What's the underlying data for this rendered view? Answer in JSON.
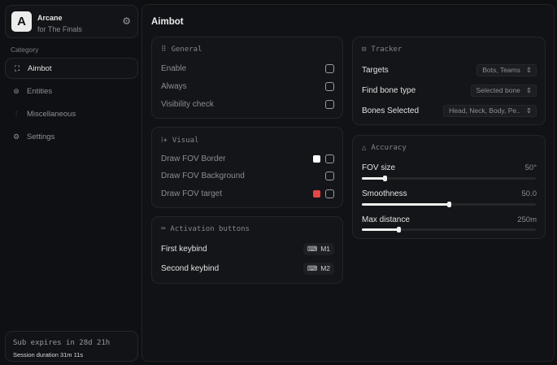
{
  "brand": {
    "logo": "A",
    "name": "Arcane",
    "subtitle": "for The Finals"
  },
  "sidebar": {
    "category_label": "Category",
    "items": [
      {
        "label": "Aimbot",
        "icon": "crosshair-icon",
        "active": true
      },
      {
        "label": "Entities",
        "icon": "entities-icon",
        "active": false
      },
      {
        "label": "Miscellaneous",
        "icon": "sliders-icon",
        "active": false
      },
      {
        "label": "Settings",
        "icon": "gear-icon",
        "active": false
      }
    ]
  },
  "subscription": {
    "expires": "Sub expires in 28d 21h",
    "session": "Session duration 31m 11s"
  },
  "main": {
    "title": "Aimbot"
  },
  "general": {
    "title": "General",
    "items": [
      {
        "label": "Enable",
        "checked": false
      },
      {
        "label": "Always",
        "checked": false
      },
      {
        "label": "Visibility check",
        "checked": false
      }
    ]
  },
  "visual": {
    "title": "Visual",
    "items": [
      {
        "label": "Draw FOV Border",
        "color": "#ffffff",
        "checked": false
      },
      {
        "label": "Draw FOV Background",
        "checked": false
      },
      {
        "label": "Draw FOV target",
        "color": "#e84545",
        "checked": false
      }
    ]
  },
  "activation": {
    "title": "Activation buttons",
    "items": [
      {
        "label": "First keybind",
        "key": "M1"
      },
      {
        "label": "Second keybind",
        "key": "M2"
      }
    ]
  },
  "tracker": {
    "title": "Tracker",
    "items": [
      {
        "label": "Targets",
        "value": "Bots, Teams"
      },
      {
        "label": "Find bone type",
        "value": "Selected bone"
      },
      {
        "label": "Bones Selected",
        "value": "Head, Neck, Body, Pe.."
      }
    ]
  },
  "accuracy": {
    "title": "Accuracy",
    "items": [
      {
        "label": "FOV size",
        "value": "50°",
        "fraction": 0.13
      },
      {
        "label": "Smoothness",
        "value": "50.0",
        "fraction": 0.5
      },
      {
        "label": "Max distance",
        "value": "250m",
        "fraction": 0.21
      }
    ]
  }
}
